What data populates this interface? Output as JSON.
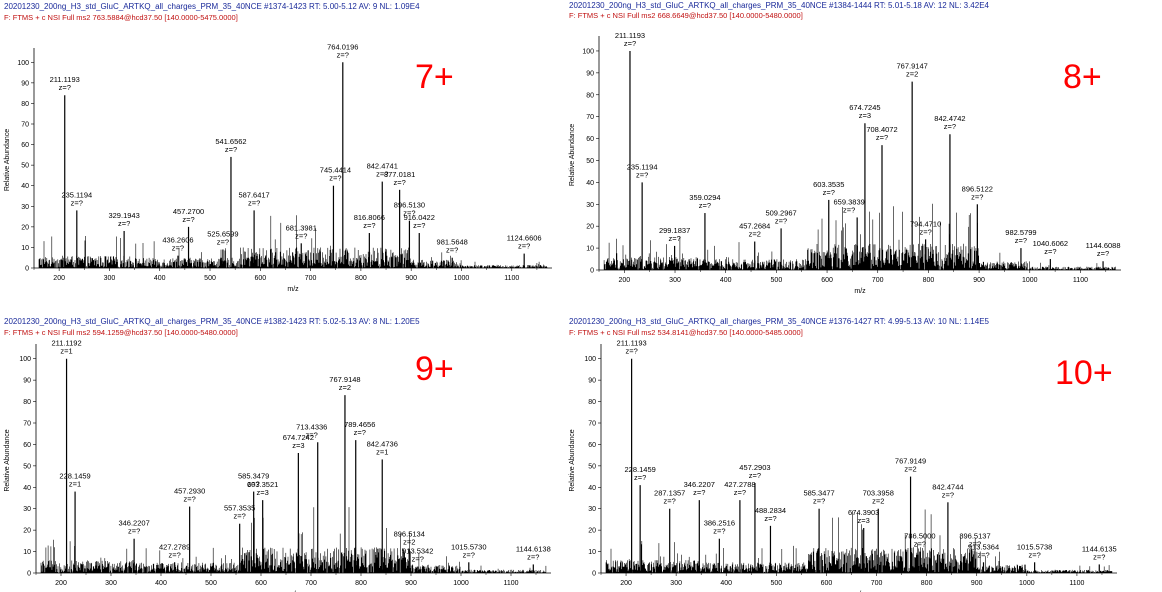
{
  "axis": {
    "ylabel": "Relative Abundance",
    "xlabel": "m/z",
    "xticks": [
      200,
      300,
      400,
      500,
      600,
      700,
      800,
      900,
      1000,
      1100
    ],
    "yticks": [
      0,
      10,
      20,
      30,
      40,
      50,
      60,
      70,
      80,
      90,
      100
    ]
  },
  "colors": {
    "header1": "#1a2a9a",
    "header2": "#c01010",
    "charge": "#ff0000",
    "leader": "#22aa22",
    "trace": "#000000"
  },
  "chart_data": [
    {
      "type": "bar",
      "charge_label": "7+",
      "header_line1": "20201230_200ng_H3_std_GluC_ARTKQ_all_charges_PRM_35_40NCE #1374-1423   RT: 5.00-5.12   AV: 9   NL: 1.09E4",
      "header_line2": "F: FTMS + c NSI Full ms2 763.5884@hcd37.50 [140.0000-5475.0000]",
      "xlabel": "m/z",
      "ylabel": "Relative Abundance",
      "xlim": [
        150,
        1180
      ],
      "ylim": [
        0,
        105
      ],
      "grid": false,
      "peaks": [
        {
          "mz": 211.1193,
          "rel": 84,
          "label": "211.1193",
          "z": "z=?"
        },
        {
          "mz": 235.1194,
          "rel": 28,
          "label": "235.1194",
          "z": "z=?"
        },
        {
          "mz": 329.1943,
          "rel": 18,
          "label": "329.1943",
          "z": "z=?"
        },
        {
          "mz": 436.2606,
          "rel": 6,
          "label": "436.2606",
          "z": "z=?"
        },
        {
          "mz": 457.27,
          "rel": 20,
          "label": "457.2700",
          "z": "z=?"
        },
        {
          "mz": 525.6599,
          "rel": 9,
          "label": "525.6599",
          "z": "z=?"
        },
        {
          "mz": 541.6562,
          "rel": 54,
          "label": "541.6562",
          "z": "z=?"
        },
        {
          "mz": 587.6417,
          "rel": 28,
          "label": "587.6417",
          "z": "z=?"
        },
        {
          "mz": 681.3981,
          "rel": 12,
          "label": "681.3981",
          "z": "z=?"
        },
        {
          "mz": 745.4414,
          "rel": 40,
          "label": "745.4414",
          "z": "z=?"
        },
        {
          "mz": 764.0196,
          "rel": 100,
          "label": "764.0196",
          "z": "z=?"
        },
        {
          "mz": 816.8066,
          "rel": 17,
          "label": "816.8066",
          "z": "z=?"
        },
        {
          "mz": 842.4741,
          "rel": 42,
          "label": "842.4741",
          "z": "z=?"
        },
        {
          "mz": 877.0181,
          "rel": 38,
          "label": "877.0181",
          "z": "z=?"
        },
        {
          "mz": 896.513,
          "rel": 23,
          "label": "896.5130",
          "z": "z=?"
        },
        {
          "mz": 916.0422,
          "rel": 17,
          "label": "916.0422",
          "z": "z=?"
        },
        {
          "mz": 981.5648,
          "rel": 5,
          "label": "981.5648",
          "z": "z=?"
        },
        {
          "mz": 1124.6606,
          "rel": 7,
          "label": "1124.6606",
          "z": "z=?"
        }
      ]
    },
    {
      "type": "bar",
      "charge_label": "8+",
      "header_line1": "20201230_200ng_H3_std_GluC_ARTKQ_all_charges_PRM_35_40NCE #1384-1444   RT: 5.01-5.18   AV: 12   NL: 3.42E4",
      "header_line2": "F: FTMS + c NSI Full ms2 668.6649@hcd37.50 [140.0000-5480.0000]",
      "xlabel": "m/z",
      "ylabel": "Relative Abundance",
      "xlim": [
        150,
        1180
      ],
      "ylim": [
        0,
        105
      ],
      "grid": false,
      "peaks": [
        {
          "mz": 211.1193,
          "rel": 100,
          "label": "211.1193",
          "z": "z=?"
        },
        {
          "mz": 235.1194,
          "rel": 40,
          "label": "235.1194",
          "z": "z=?"
        },
        {
          "mz": 299.1837,
          "rel": 11,
          "label": "299.1837",
          "z": "z=?"
        },
        {
          "mz": 359.0294,
          "rel": 26,
          "label": "359.0294",
          "z": "z=?"
        },
        {
          "mz": 457.2684,
          "rel": 13,
          "label": "457.2684",
          "z": "z=2"
        },
        {
          "mz": 509.2967,
          "rel": 19,
          "label": "509.2967",
          "z": "z=?"
        },
        {
          "mz": 603.3535,
          "rel": 32,
          "label": "603.3535",
          "z": "z=?"
        },
        {
          "mz": 659.3839,
          "rel": 24,
          "label": "659.3839",
          "z": "z=?"
        },
        {
          "mz": 674.7245,
          "rel": 67,
          "label": "674.7245",
          "z": "z=3"
        },
        {
          "mz": 708.4072,
          "rel": 57,
          "label": "708.4072",
          "z": "z=?"
        },
        {
          "mz": 767.9147,
          "rel": 86,
          "label": "767.9147",
          "z": "z=2"
        },
        {
          "mz": 794.471,
          "rel": 14,
          "label": "794.4710",
          "z": "z=?"
        },
        {
          "mz": 842.4742,
          "rel": 62,
          "label": "842.4742",
          "z": "z=?"
        },
        {
          "mz": 896.5122,
          "rel": 30,
          "label": "896.5122",
          "z": "z=?"
        },
        {
          "mz": 982.5799,
          "rel": 10,
          "label": "982.5799",
          "z": "z=?"
        },
        {
          "mz": 1040.6062,
          "rel": 5,
          "label": "1040.6062",
          "z": "z=?"
        },
        {
          "mz": 1144.6088,
          "rel": 4,
          "label": "1144.6088",
          "z": "z=?"
        }
      ]
    },
    {
      "type": "bar",
      "charge_label": "9+",
      "header_line1": "20201230_200ng_H3_std_GluC_ARTKQ_all_charges_PRM_35_40NCE #1382-1423   RT: 5.02-5.13   AV: 8   NL: 1.20E5",
      "header_line2": "F: FTMS + c NSI Full ms2 594.1259@hcd37.50 [140.0000-5480.0000]",
      "xlabel": "m/z",
      "ylabel": "Relative Abundance",
      "xlim": [
        150,
        1180
      ],
      "ylim": [
        0,
        105
      ],
      "grid": false,
      "peaks": [
        {
          "mz": 211.1192,
          "rel": 100,
          "label": "211.1192",
          "z": "z=1"
        },
        {
          "mz": 228.1459,
          "rel": 38,
          "label": "228.1459",
          "z": "z=1"
        },
        {
          "mz": 346.2207,
          "rel": 16,
          "label": "346.2207",
          "z": "z=?"
        },
        {
          "mz": 427.2789,
          "rel": 5,
          "label": "427.2789",
          "z": "z=?"
        },
        {
          "mz": 457.293,
          "rel": 31,
          "label": "457.2930",
          "z": "z=?"
        },
        {
          "mz": 557.3535,
          "rel": 23,
          "label": "557.3535",
          "z": "z=?"
        },
        {
          "mz": 585.3479,
          "rel": 38,
          "label": "585.3479",
          "z": "z=?"
        },
        {
          "mz": 603.3521,
          "rel": 34,
          "label": "603.3521",
          "z": "z=3"
        },
        {
          "mz": 674.7242,
          "rel": 56,
          "label": "674.7242",
          "z": "z=3"
        },
        {
          "mz": 713.4336,
          "rel": 61,
          "label": "713.4336",
          "z": "z=?"
        },
        {
          "mz": 767.9148,
          "rel": 83,
          "label": "767.9148",
          "z": "z=2"
        },
        {
          "mz": 789.4656,
          "rel": 62,
          "label": "789.4656",
          "z": "z=?"
        },
        {
          "mz": 842.4736,
          "rel": 53,
          "label": "842.4736",
          "z": "z=1"
        },
        {
          "mz": 896.5134,
          "rel": 11,
          "label": "896.5134",
          "z": "z=2"
        },
        {
          "mz": 913.5342,
          "rel": 3,
          "label": "913.5342",
          "z": "z=?"
        },
        {
          "mz": 1015.573,
          "rel": 5,
          "label": "1015.5730",
          "z": "z=?"
        },
        {
          "mz": 1144.6138,
          "rel": 4,
          "label": "1144.6138",
          "z": "z=?"
        }
      ]
    },
    {
      "type": "bar",
      "charge_label": "10+",
      "header_line1": "20201230_200ng_H3_std_GluC_ARTKQ_all_charges_PRM_35_40NCE #1376-1427   RT: 4.99-5.13   AV: 10   NL: 1.14E5",
      "header_line2": "F: FTMS + c NSI Full ms2 534.8141@hcd37.50 [140.0000-5485.0000]",
      "xlabel": "m/z",
      "ylabel": "Relative Abundance",
      "xlim": [
        150,
        1180
      ],
      "ylim": [
        0,
        105
      ],
      "grid": false,
      "peaks": [
        {
          "mz": 211.1193,
          "rel": 100,
          "label": "211.1193",
          "z": "z=?"
        },
        {
          "mz": 228.1459,
          "rel": 41,
          "label": "228.1459",
          "z": "z=?"
        },
        {
          "mz": 287.1357,
          "rel": 30,
          "label": "287.1357",
          "z": "z=?"
        },
        {
          "mz": 346.2207,
          "rel": 34,
          "label": "346.2207",
          "z": "z=?"
        },
        {
          "mz": 386.2516,
          "rel": 16,
          "label": "386.2516",
          "z": "z=?"
        },
        {
          "mz": 427.2788,
          "rel": 34,
          "label": "427.2788",
          "z": "z=?"
        },
        {
          "mz": 457.2903,
          "rel": 42,
          "label": "457.2903",
          "z": "z=?"
        },
        {
          "mz": 488.2834,
          "rel": 22,
          "label": "488.2834",
          "z": "z=?"
        },
        {
          "mz": 585.3477,
          "rel": 30,
          "label": "585.3477",
          "z": "z=?"
        },
        {
          "mz": 674.3903,
          "rel": 21,
          "label": "674.3903",
          "z": "z=3"
        },
        {
          "mz": 703.3958,
          "rel": 30,
          "label": "703.3958",
          "z": "z=2"
        },
        {
          "mz": 767.9149,
          "rel": 45,
          "label": "767.9149",
          "z": "z=2"
        },
        {
          "mz": 786.5,
          "rel": 10,
          "label": "786.5000",
          "z": "z=?"
        },
        {
          "mz": 842.4744,
          "rel": 33,
          "label": "842.4744",
          "z": "z=?"
        },
        {
          "mz": 896.5137,
          "rel": 10,
          "label": "896.5137",
          "z": "z=?"
        },
        {
          "mz": 913.5364,
          "rel": 5,
          "label": "913.5364",
          "z": "z=?"
        },
        {
          "mz": 1015.5738,
          "rel": 5,
          "label": "1015.5738",
          "z": "z=?"
        },
        {
          "mz": 1144.6135,
          "rel": 4,
          "label": "1144.6135",
          "z": "z=?"
        }
      ]
    }
  ]
}
